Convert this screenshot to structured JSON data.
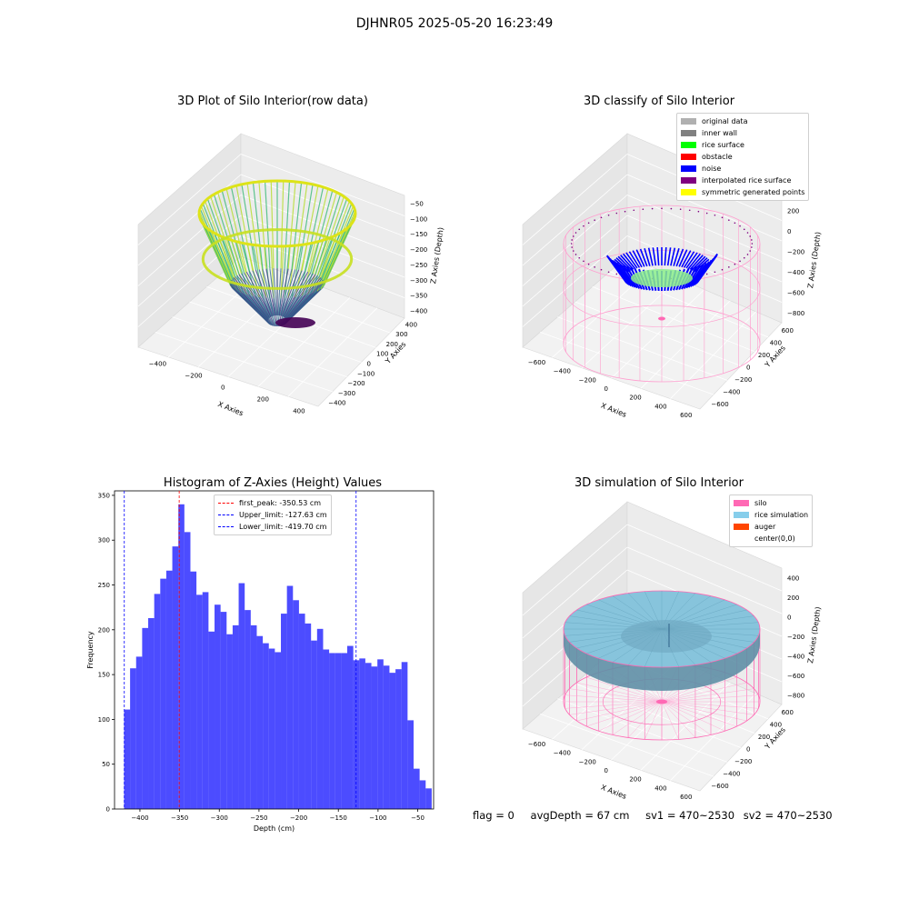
{
  "suptitle": "DJHNR05 2025-05-20 16:23:49",
  "panels": {
    "raw": {
      "title": "3D Plot of Silo Interior(row data)",
      "xlabel": "X Axies",
      "ylabel": "Y Axies",
      "zlabel": "Z Axies (Depth)",
      "xticks": [
        "−400",
        "−200",
        "0",
        "200",
        "400"
      ],
      "yticks": [
        "400",
        "300",
        "200",
        "100",
        "0",
        "−100",
        "−200",
        "−300",
        "−400"
      ],
      "zticks": [
        "−50",
        "−100",
        "−150",
        "−200",
        "−250",
        "−300",
        "−350",
        "−400"
      ]
    },
    "classify": {
      "title": "3D classify of Silo Interior",
      "xlabel": "X Axies",
      "ylabel": "Y Axies",
      "zlabel": "Z Axies (Depth)",
      "xticks": [
        "−600",
        "−400",
        "−200",
        "0",
        "200",
        "400",
        "600"
      ],
      "yticks": [
        "600",
        "400",
        "200",
        "0",
        "−200",
        "−400",
        "−600"
      ],
      "zticks": [
        "200",
        "0",
        "−200",
        "−400",
        "−600",
        "−800"
      ],
      "legend": [
        {
          "label": "original data",
          "color": "#b0b0b0"
        },
        {
          "label": "inner wall",
          "color": "#808080"
        },
        {
          "label": "rice surface",
          "color": "#00ff00"
        },
        {
          "label": "obstacle",
          "color": "#ff0000"
        },
        {
          "label": "noise",
          "color": "#0000ff"
        },
        {
          "label": "interpolated rice surface",
          "color": "#800080"
        },
        {
          "label": "symmetric generated points",
          "color": "#ffff00"
        }
      ]
    },
    "simulation": {
      "title": "3D simulation of Silo Interior",
      "xlabel": "X Axies",
      "ylabel": "Y Axies",
      "zlabel": "Z Axies (Depth)",
      "xticks": [
        "−600",
        "−400",
        "−200",
        "0",
        "200",
        "400",
        "600"
      ],
      "yticks": [
        "600",
        "400",
        "200",
        "0",
        "−200",
        "−400",
        "−600"
      ],
      "zticks": [
        "400",
        "200",
        "0",
        "−200",
        "−400",
        "−600",
        "−800"
      ],
      "legend": [
        {
          "label": "silo",
          "color": "#ff69b4"
        },
        {
          "label": "rice simulation",
          "color": "#87ceeb"
        },
        {
          "label": "auger",
          "color": "#ff4500"
        },
        {
          "label": "center(0,0)",
          "color": ""
        }
      ]
    }
  },
  "footer": {
    "flag": "flag = 0",
    "avg": "avgDepth = 67 cm",
    "sv1": "sv1 = 470~2530",
    "sv2": "sv2 = 470~2530"
  },
  "chart_data": {
    "type": "bar",
    "title": "Histogram of Z-Axies (Height) Values",
    "xlabel": "Depth (cm)",
    "ylabel": "Frequency",
    "xlim": [
      -432,
      -30
    ],
    "ylim": [
      0,
      355
    ],
    "xticks": [
      -400,
      -350,
      -300,
      -250,
      -200,
      -150,
      -100,
      -50
    ],
    "xtick_labels": [
      "−400",
      "−350",
      "−300",
      "−250",
      "−200",
      "−150",
      "−100",
      "−50"
    ],
    "yticks": [
      0,
      50,
      100,
      150,
      200,
      250,
      300,
      350
    ],
    "bin_start": -420,
    "bin_width": 7.6,
    "values": [
      111,
      157,
      170,
      202,
      213,
      240,
      257,
      266,
      293,
      340,
      309,
      265,
      239,
      242,
      198,
      228,
      220,
      195,
      205,
      252,
      222,
      205,
      193,
      185,
      179,
      175,
      218,
      249,
      233,
      218,
      207,
      188,
      201,
      178,
      174,
      174,
      174,
      182,
      166,
      168,
      163,
      159,
      167,
      160,
      152,
      156,
      164,
      99,
      45,
      32,
      23
    ],
    "bar_color": "#0000ff",
    "lines": [
      {
        "label": "first_peak: -350.53 cm",
        "x": -350.53,
        "color": "#ff0000"
      },
      {
        "label": "Upper_limit: -127.63 cm",
        "x": -127.63,
        "color": "#0000ff"
      },
      {
        "label": "Lower_limit: -419.70 cm",
        "x": -419.7,
        "color": "#0000ff"
      }
    ],
    "legend_position": "top-center"
  }
}
